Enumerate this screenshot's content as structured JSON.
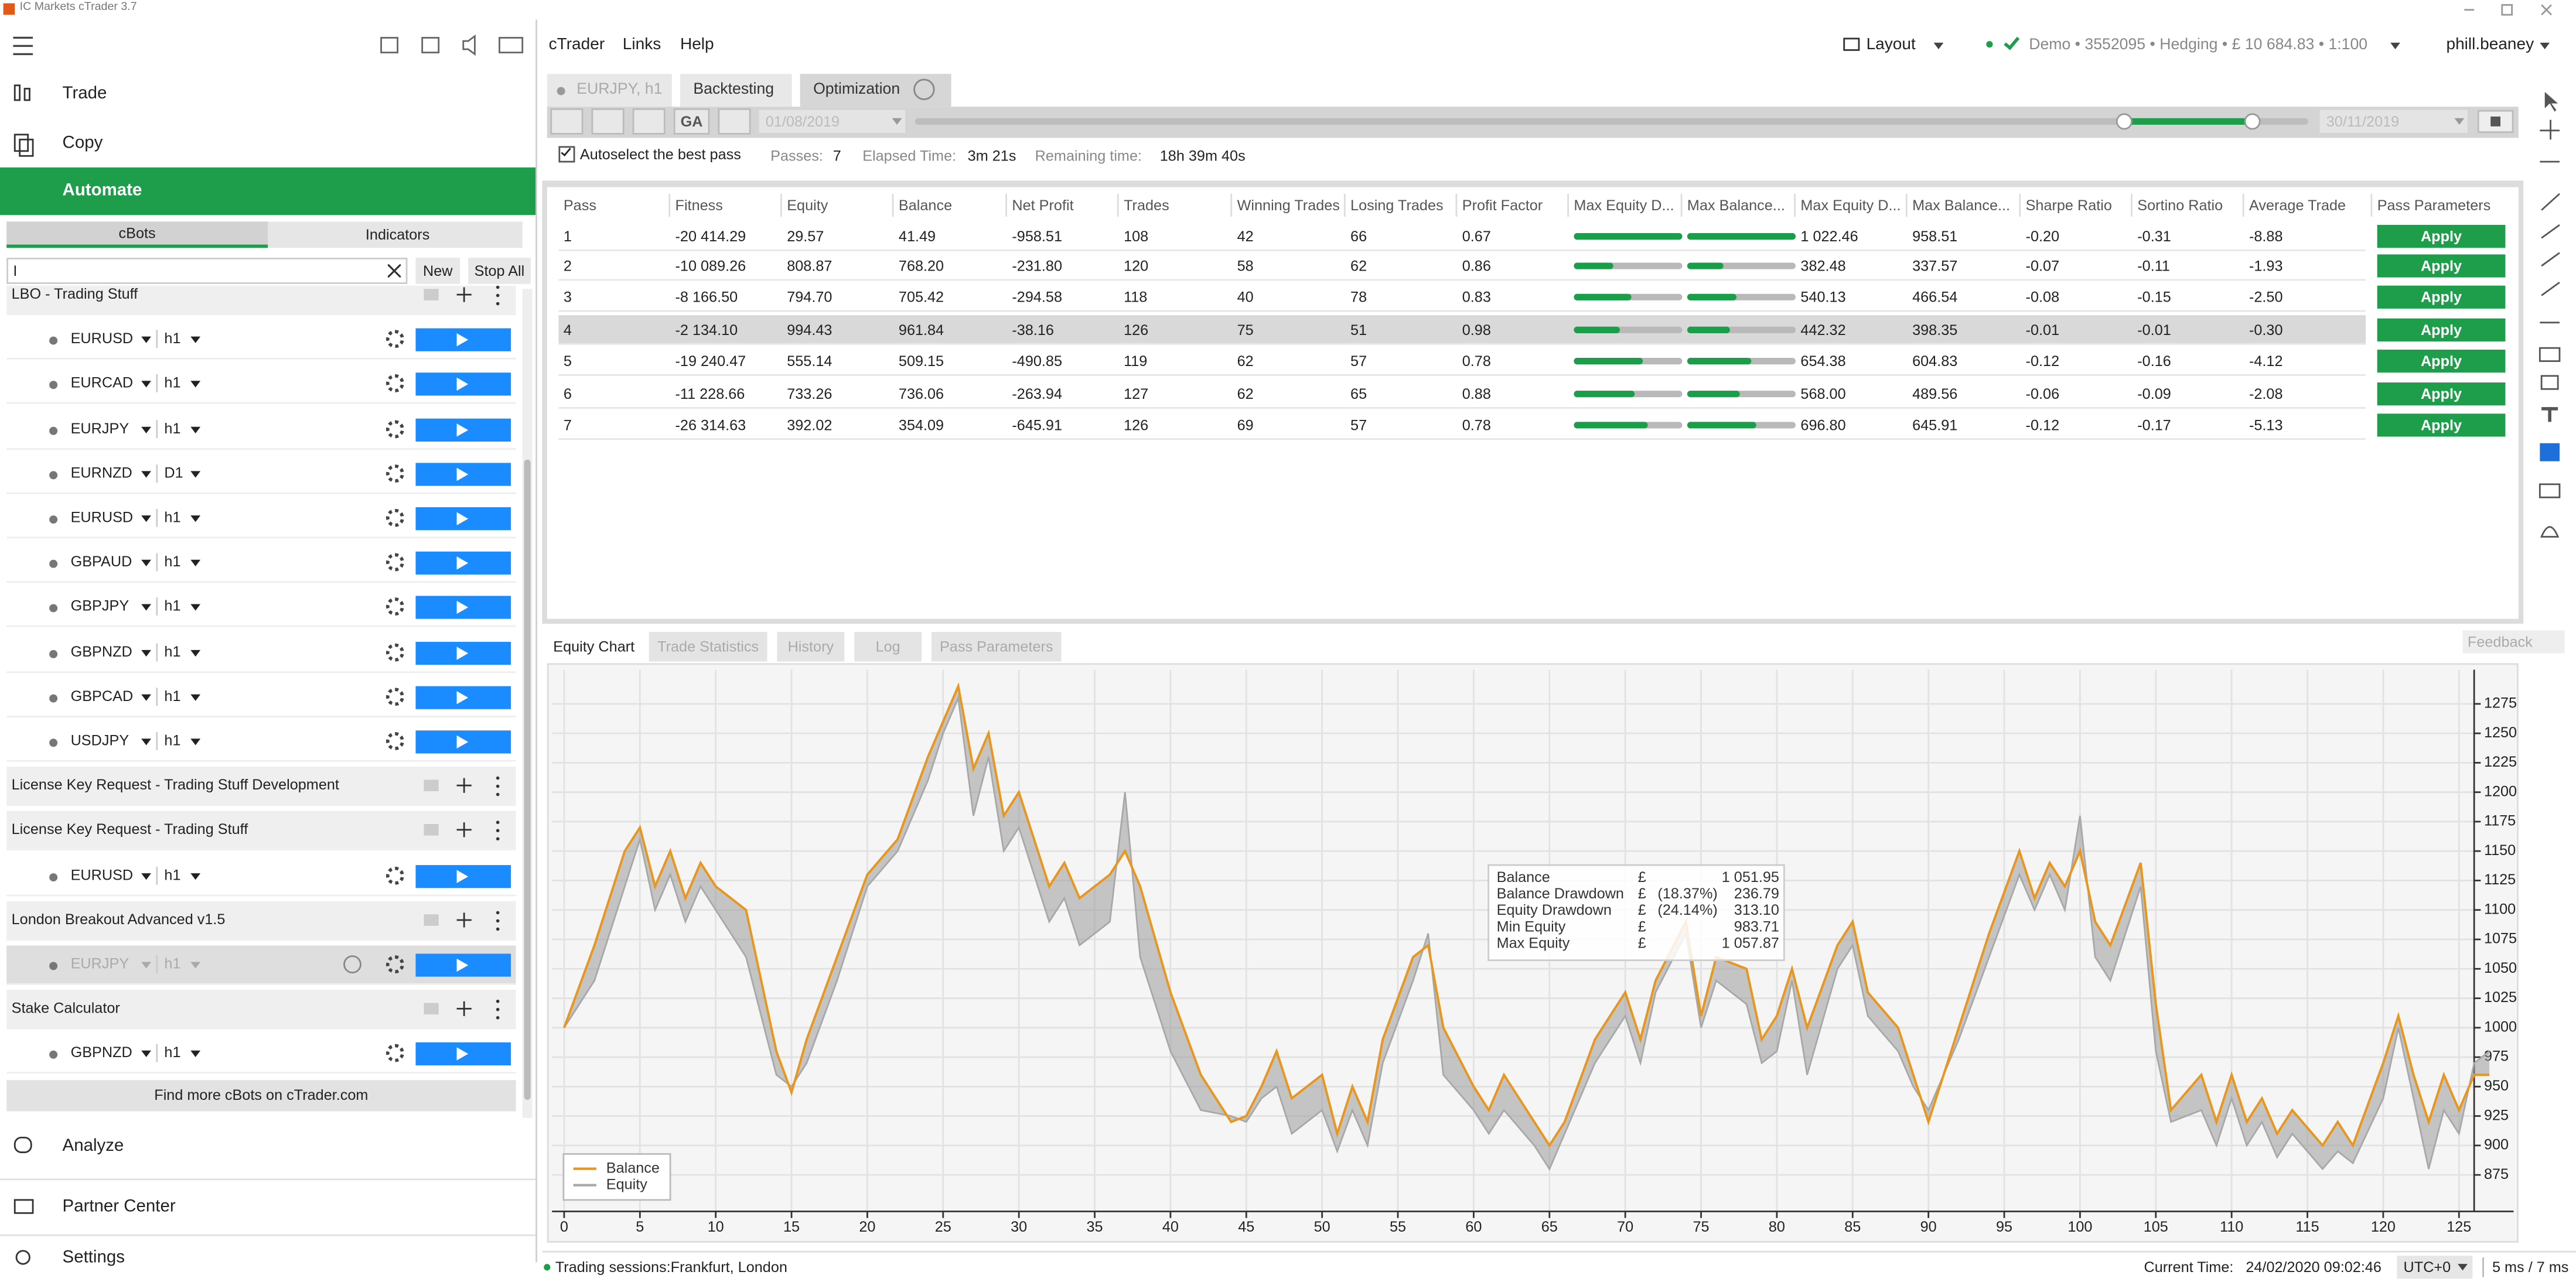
{
  "window_title": "IC Markets cTrader 3.7",
  "sidebar": {
    "nav": [
      "Trade",
      "Copy",
      "Automate"
    ],
    "tabs": [
      "cBots",
      "Indicators"
    ],
    "search": "I",
    "buttons": [
      "New",
      "Stop All"
    ],
    "groups": [
      {
        "name": "LBO - Trading Stuff",
        "items": [
          [
            "EURUSD",
            "h1"
          ],
          [
            "EURCAD",
            "h1"
          ],
          [
            "EURJPY",
            "h1"
          ],
          [
            "EURNZD",
            "D1"
          ],
          [
            "EURUSD",
            "h1"
          ],
          [
            "GBPAUD",
            "h1"
          ],
          [
            "GBPJPY",
            "h1"
          ],
          [
            "GBPNZD",
            "h1"
          ],
          [
            "GBPCAD",
            "h1"
          ],
          [
            "USDJPY",
            "h1"
          ]
        ]
      },
      {
        "name": "License Key Request - Trading Stuff Development",
        "items": []
      },
      {
        "name": "License Key Request - Trading Stuff",
        "items": [
          [
            "EURUSD",
            "h1"
          ]
        ]
      },
      {
        "name": "London Breakout Advanced v1.5",
        "items": [
          [
            "EURJPY",
            "h1"
          ]
        ]
      },
      {
        "name": "Stake Calculator",
        "items": [
          [
            "GBPNZD",
            "h1"
          ]
        ]
      }
    ],
    "find_more": "Find more cBots on cTrader.com",
    "bottom_nav": [
      "Analyze",
      "Partner Center",
      "Settings"
    ]
  },
  "menu": [
    "cTrader",
    "Links",
    "Help"
  ],
  "account": {
    "layout": "Layout",
    "info": "Demo • 3552095 • Hedging • £ 10 684.83 • 1:100",
    "user": "phill.beaney"
  },
  "tabs": [
    "EURJPY, h1",
    "Backtesting",
    "Optimization"
  ],
  "toolbar": {
    "ga": "GA",
    "date_from": "01/08/2019",
    "date_to": "30/11/2019"
  },
  "status": {
    "autoselect": "Autoselect the best pass",
    "passes": "Passes:",
    "passes_value": "7",
    "elapsed": "Elapsed Time:",
    "elapsed_value": "3m 21s",
    "remaining": "Remaining time:",
    "remaining_value": "18h 39m 40s"
  },
  "table": {
    "columns": [
      "Pass",
      "Fitness",
      "Equity",
      "Balance",
      "Net Profit",
      "Trades",
      "Winning Trades",
      "Losing Trades",
      "Profit Factor",
      "Max Equity D...",
      "Max Balance...",
      "Max Equity D...",
      "Max Balance...",
      "Sharpe Ratio",
      "Sortino Ratio",
      "Average Trade",
      "Pass Parameters"
    ],
    "rows": [
      [
        "1",
        "-20 414.29",
        "29.57",
        "41.49",
        "-958.51",
        "108",
        "42",
        "66",
        "0.67",
        "1 022.46",
        "958.51",
        "-0.20",
        "-0.31",
        "-8.88"
      ],
      [
        "2",
        "-10 089.26",
        "808.87",
        "768.20",
        "-231.80",
        "120",
        "58",
        "62",
        "0.86",
        "382.48",
        "337.57",
        "-0.07",
        "-0.11",
        "-1.93"
      ],
      [
        "3",
        "-8 166.50",
        "794.70",
        "705.42",
        "-294.58",
        "118",
        "40",
        "78",
        "0.83",
        "540.13",
        "466.54",
        "-0.08",
        "-0.15",
        "-2.50"
      ],
      [
        "4",
        "-2 134.10",
        "994.43",
        "961.84",
        "-38.16",
        "126",
        "75",
        "51",
        "0.98",
        "442.32",
        "398.35",
        "-0.01",
        "-0.01",
        "-0.30"
      ],
      [
        "5",
        "-19 240.47",
        "555.14",
        "509.15",
        "-490.85",
        "119",
        "62",
        "57",
        "0.78",
        "654.38",
        "604.83",
        "-0.12",
        "-0.16",
        "-4.12"
      ],
      [
        "6",
        "-11 228.66",
        "733.26",
        "736.06",
        "-263.94",
        "127",
        "62",
        "65",
        "0.88",
        "568.00",
        "489.56",
        "-0.06",
        "-0.09",
        "-2.08"
      ],
      [
        "7",
        "-26 314.63",
        "392.02",
        "354.09",
        "-645.91",
        "126",
        "69",
        "57",
        "0.78",
        "696.80",
        "645.91",
        "-0.12",
        "-0.17",
        "-5.13"
      ]
    ],
    "bars": [
      [
        100,
        100
      ],
      [
        37,
        33
      ],
      [
        53,
        46
      ],
      [
        43,
        39
      ],
      [
        64,
        59
      ],
      [
        56,
        48
      ],
      [
        68,
        63
      ]
    ],
    "button": "Apply"
  },
  "bottom_tabs": [
    "Equity Chart",
    "Trade Statistics",
    "History",
    "Log",
    "Pass Parameters"
  ],
  "feedback": "Feedback",
  "chart_data": {
    "type": "line",
    "x": [
      0,
      2,
      4,
      5,
      6,
      7,
      8,
      9,
      10,
      12,
      14,
      15,
      16,
      18,
      20,
      22,
      24,
      25,
      26,
      27,
      28,
      29,
      30,
      31,
      32,
      33,
      34,
      36,
      37,
      38,
      40,
      42,
      44,
      45,
      46,
      47,
      48,
      50,
      51,
      52,
      53,
      54,
      56,
      57,
      58,
      60,
      61,
      62,
      64,
      65,
      66,
      68,
      70,
      71,
      72,
      74,
      75,
      76,
      78,
      79,
      80,
      81,
      82,
      84,
      85,
      86,
      88,
      89,
      90,
      92,
      94,
      96,
      97,
      98,
      99,
      100,
      101,
      102,
      104,
      105,
      106,
      108,
      109,
      110,
      111,
      112,
      113,
      114,
      116,
      117,
      118,
      120,
      121,
      122,
      123,
      124,
      125,
      126,
      127
    ],
    "series": [
      {
        "name": "Balance",
        "color": "#e8961e",
        "values": [
          1000,
          1070,
          1150,
          1170,
          1120,
          1150,
          1110,
          1140,
          1120,
          1100,
          980,
          945,
          990,
          1060,
          1130,
          1160,
          1230,
          1260,
          1290,
          1220,
          1250,
          1180,
          1200,
          1160,
          1120,
          1140,
          1110,
          1130,
          1150,
          1120,
          1030,
          960,
          920,
          925,
          950,
          980,
          940,
          960,
          910,
          950,
          920,
          990,
          1060,
          1070,
          1000,
          950,
          930,
          960,
          920,
          900,
          920,
          990,
          1030,
          990,
          1040,
          1090,
          1010,
          1060,
          1050,
          990,
          1010,
          1050,
          1000,
          1070,
          1090,
          1030,
          1000,
          960,
          920,
          1000,
          1080,
          1150,
          1110,
          1140,
          1120,
          1150,
          1090,
          1070,
          1140,
          1020,
          930,
          960,
          920,
          960,
          920,
          940,
          910,
          930,
          900,
          920,
          900,
          970,
          1010,
          960,
          920,
          960,
          930,
          960,
          960
        ]
      },
      {
        "name": "Equity",
        "color": "#a8a8a8",
        "values": [
          1000,
          1040,
          1120,
          1160,
          1100,
          1130,
          1090,
          1120,
          1100,
          1060,
          960,
          950,
          970,
          1040,
          1120,
          1150,
          1210,
          1250,
          1280,
          1180,
          1230,
          1150,
          1170,
          1130,
          1090,
          1110,
          1070,
          1090,
          1200,
          1060,
          980,
          930,
          925,
          920,
          940,
          950,
          910,
          930,
          895,
          930,
          900,
          970,
          1040,
          1080,
          960,
          930,
          910,
          930,
          900,
          880,
          910,
          970,
          1010,
          970,
          1030,
          1080,
          1000,
          1040,
          1020,
          970,
          980,
          1040,
          960,
          1050,
          1070,
          1010,
          980,
          950,
          930,
          990,
          1060,
          1130,
          1100,
          1130,
          1100,
          1180,
          1060,
          1040,
          1120,
          980,
          920,
          930,
          900,
          940,
          900,
          920,
          890,
          910,
          880,
          895,
          885,
          940,
          1000,
          940,
          880,
          930,
          910,
          970,
          980
        ]
      }
    ],
    "xlim": [
      -0.8,
      128.6
    ],
    "ylim": [
      844,
      1304
    ],
    "xticks": [
      0,
      5,
      10,
      15,
      20,
      25,
      30,
      35,
      40,
      45,
      50,
      55,
      60,
      65,
      70,
      75,
      80,
      85,
      90,
      95,
      100,
      105,
      110,
      115,
      120,
      125
    ],
    "yticks": [
      875,
      900,
      925,
      950,
      975,
      1000,
      1025,
      1050,
      1075,
      1100,
      1125,
      1150,
      1175,
      1200,
      1225,
      1250,
      1275
    ],
    "grid": true,
    "legend": "lower left",
    "tooltip": [
      [
        "Balance",
        "£",
        "1 051.95"
      ],
      [
        "Balance Drawdown",
        "£",
        "(18.37%)",
        "236.79"
      ],
      [
        "Equity Drawdown",
        "£",
        "(24.14%)",
        "313.10"
      ],
      [
        "Min Equity",
        "£",
        "983.71"
      ],
      [
        "Max Equity",
        "£",
        "1 057.87"
      ]
    ]
  },
  "footer": {
    "sessions": "Trading sessions:Frankfurt, London",
    "time_label": "Current Time:",
    "time": "24/02/2020 09:02:46",
    "tz": "UTC+0",
    "latency": "5 ms / 7 ms"
  }
}
